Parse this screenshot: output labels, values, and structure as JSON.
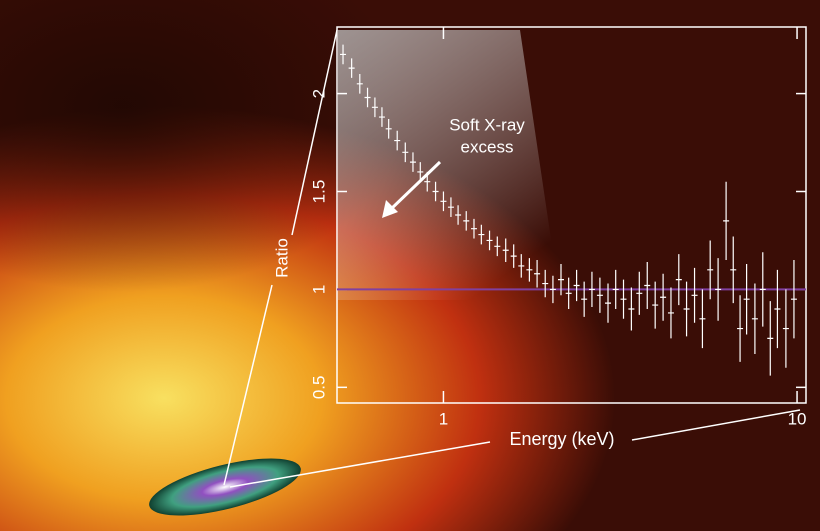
{
  "chart_data": {
    "type": "errorbar",
    "xlabel": "Energy (keV)",
    "ylabel": "Ratio",
    "annotation": [
      "Soft X-ray",
      "excess"
    ],
    "x": [
      0.52,
      0.55,
      0.58,
      0.61,
      0.64,
      0.67,
      0.7,
      0.74,
      0.78,
      0.82,
      0.86,
      0.9,
      0.95,
      1.0,
      1.05,
      1.1,
      1.16,
      1.22,
      1.28,
      1.35,
      1.42,
      1.5,
      1.58,
      1.66,
      1.75,
      1.84,
      1.94,
      2.04,
      2.15,
      2.26,
      2.38,
      2.5,
      2.63,
      2.77,
      2.92,
      3.07,
      3.23,
      3.4,
      3.58,
      3.77,
      3.97,
      4.18,
      4.4,
      4.63,
      4.87,
      5.13,
      5.4,
      5.68,
      5.98,
      6.3,
      6.6,
      6.9,
      7.2,
      7.6,
      8.0,
      8.4,
      8.8,
      9.3,
      9.8
    ],
    "values": [
      2.2,
      2.13,
      2.05,
      1.98,
      1.93,
      1.88,
      1.82,
      1.76,
      1.7,
      1.65,
      1.6,
      1.55,
      1.5,
      1.45,
      1.42,
      1.38,
      1.35,
      1.31,
      1.28,
      1.25,
      1.22,
      1.2,
      1.17,
      1.12,
      1.1,
      1.08,
      1.03,
      1.0,
      1.05,
      0.98,
      1.02,
      0.95,
      1.0,
      0.97,
      0.93,
      1.0,
      0.95,
      0.9,
      0.98,
      1.02,
      0.92,
      0.96,
      0.88,
      1.05,
      0.9,
      0.97,
      0.85,
      1.1,
      1.0,
      1.35,
      1.1,
      0.8,
      0.95,
      0.85,
      1.0,
      0.75,
      0.9,
      0.8,
      0.95
    ],
    "errors": [
      0.05,
      0.05,
      0.05,
      0.05,
      0.05,
      0.05,
      0.05,
      0.05,
      0.05,
      0.05,
      0.05,
      0.05,
      0.05,
      0.05,
      0.05,
      0.05,
      0.05,
      0.05,
      0.05,
      0.05,
      0.05,
      0.06,
      0.06,
      0.06,
      0.06,
      0.07,
      0.07,
      0.07,
      0.08,
      0.08,
      0.08,
      0.09,
      0.09,
      0.09,
      0.1,
      0.1,
      0.1,
      0.11,
      0.11,
      0.12,
      0.12,
      0.12,
      0.13,
      0.13,
      0.14,
      0.14,
      0.15,
      0.15,
      0.16,
      0.2,
      0.17,
      0.17,
      0.18,
      0.18,
      0.19,
      0.19,
      0.2,
      0.2,
      0.2
    ],
    "color": "#ffffff",
    "hline": 1,
    "hline_color": "#8040a0",
    "xscale": "log",
    "xlim": [
      0.5,
      10.6
    ],
    "ylim": [
      0.42,
      2.34
    ],
    "xticks": [
      1,
      10
    ],
    "yticks": [
      0.5,
      1,
      1.5,
      2
    ]
  }
}
